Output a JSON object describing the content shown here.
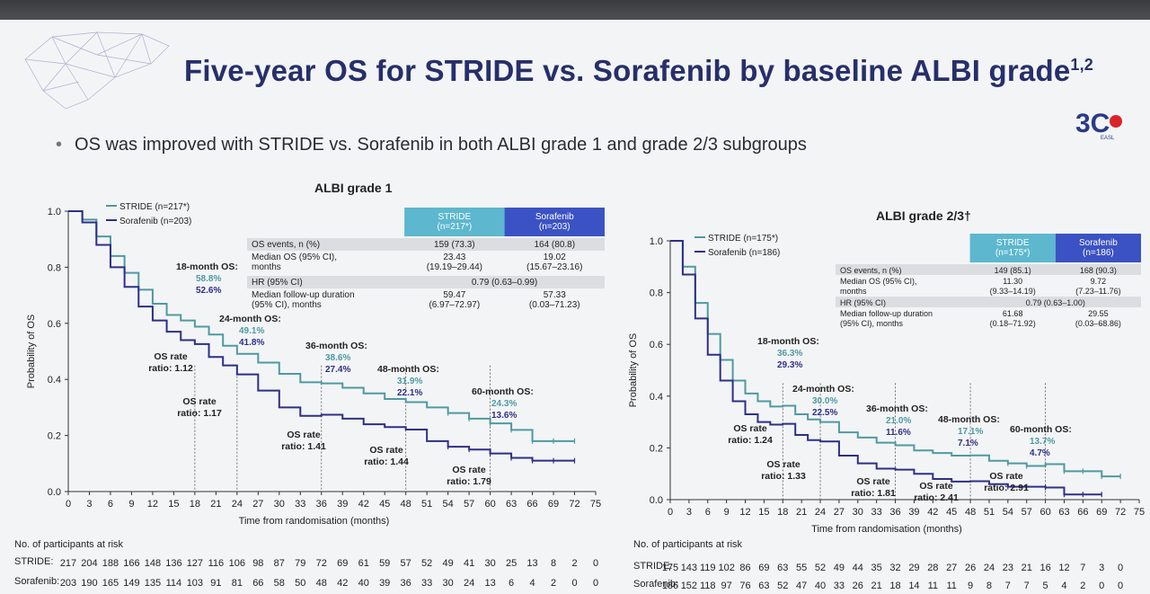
{
  "slide": {
    "title": "Five-year OS for STRIDE vs. Sorafenib by baseline ALBI grade",
    "title_sup": "1,2",
    "bullet": "OS was improved with STRIDE vs. Sorafenib in both ALBI grade 1 and grade 2/3 subgroups",
    "logo_text": "3C",
    "logo_sub": "EASL"
  },
  "colors": {
    "stride": "#4e9aa0",
    "sorafenib": "#2e2f86",
    "header_stride": "#5db7cf",
    "header_soraf": "#3b52c4"
  },
  "chart_data": [
    {
      "type": "line",
      "title": "ALBI grade 1",
      "xlabel": "Time from randomisation (months)",
      "ylabel": "Probability of OS",
      "xlim": [
        0,
        75
      ],
      "ylim": [
        0,
        1.0
      ],
      "xticks": [
        0,
        3,
        6,
        9,
        12,
        15,
        18,
        21,
        24,
        27,
        30,
        33,
        36,
        39,
        42,
        45,
        48,
        51,
        54,
        57,
        60,
        63,
        66,
        69,
        72,
        75
      ],
      "yticks": [
        "0.0",
        "0.2",
        "0.4",
        "0.6",
        "0.8",
        "1.0"
      ],
      "legend": [
        "STRIDE (n=217*)",
        "Sorafenib (n=203)"
      ],
      "series": [
        {
          "name": "STRIDE (n=217*)",
          "x": [
            0,
            2,
            4,
            6,
            8,
            10,
            12,
            14,
            16,
            18,
            20,
            22,
            24,
            27,
            30,
            33,
            36,
            39,
            42,
            45,
            48,
            51,
            54,
            57,
            60,
            63,
            66,
            69,
            72
          ],
          "values": [
            1.0,
            0.97,
            0.91,
            0.84,
            0.78,
            0.72,
            0.67,
            0.63,
            0.61,
            0.588,
            0.56,
            0.52,
            0.491,
            0.46,
            0.42,
            0.39,
            0.386,
            0.37,
            0.35,
            0.33,
            0.319,
            0.3,
            0.28,
            0.26,
            0.243,
            0.22,
            0.18,
            0.18,
            0.18
          ]
        },
        {
          "name": "Sorafenib (n=203)",
          "x": [
            0,
            2,
            4,
            6,
            8,
            10,
            12,
            14,
            16,
            18,
            20,
            22,
            24,
            27,
            30,
            33,
            36,
            39,
            42,
            45,
            48,
            51,
            54,
            57,
            60,
            63,
            66,
            69,
            72
          ],
          "values": [
            1.0,
            0.96,
            0.88,
            0.8,
            0.73,
            0.66,
            0.61,
            0.57,
            0.54,
            0.526,
            0.48,
            0.45,
            0.418,
            0.36,
            0.3,
            0.27,
            0.274,
            0.26,
            0.24,
            0.23,
            0.221,
            0.18,
            0.16,
            0.15,
            0.136,
            0.12,
            0.11,
            0.11,
            0.11
          ]
        }
      ],
      "annotations": [
        {
          "label": "18-month OS:",
          "stride": "58.8%",
          "soraf": "52.6%"
        },
        {
          "label": "24-month OS:",
          "stride": "49.1%",
          "soraf": "41.8%"
        },
        {
          "label": "36-month OS:",
          "stride": "38.6%",
          "soraf": "27.4%"
        },
        {
          "label": "48-month OS:",
          "stride": "31.9%",
          "soraf": "22.1%"
        },
        {
          "label": "60-month OS:",
          "stride": "24.3%",
          "soraf": "13.6%"
        }
      ],
      "ratios": [
        "OS rate\nratio: 1.12",
        "OS rate\nratio: 1.17",
        "OS rate\nratio: 1.41",
        "OS rate\nratio: 1.44",
        "OS rate\nratio: 1.79"
      ],
      "table": {
        "headers": [
          "STRIDE\n(n=217*)",
          "Sorafenib\n(n=203)"
        ],
        "rows": [
          [
            "OS events, n (%)",
            "159 (73.3)",
            "164 (80.8)"
          ],
          [
            "Median OS (95% CI),\nmonths",
            "23.43\n(19.19–29.44)",
            "19.02\n(15.67–23.16)"
          ],
          [
            "HR (95% CI)",
            "0.79 (0.63–0.99)",
            ""
          ],
          [
            "Median follow-up duration\n(95% CI), months",
            "59.47\n(6.97–72.97)",
            "57.33\n(0.03–71.23)"
          ]
        ]
      }
    },
    {
      "type": "line",
      "title": "ALBI grade 2/3†",
      "xlabel": "Time from randomisation (months)",
      "ylabel": "Probability of OS",
      "xlim": [
        0,
        75
      ],
      "ylim": [
        0,
        1.0
      ],
      "xticks": [
        0,
        3,
        6,
        9,
        12,
        15,
        18,
        21,
        24,
        27,
        30,
        33,
        36,
        39,
        42,
        45,
        48,
        51,
        54,
        57,
        60,
        63,
        66,
        69,
        72,
        75
      ],
      "yticks": [
        "0.0",
        "0.2",
        "0.4",
        "0.6",
        "0.8",
        "1.0"
      ],
      "legend": [
        "STRIDE (n=175*)",
        "Sorafenib (n=186)"
      ],
      "series": [
        {
          "name": "STRIDE (n=175*)",
          "x": [
            0,
            2,
            4,
            6,
            8,
            10,
            12,
            14,
            16,
            18,
            20,
            22,
            24,
            27,
            30,
            33,
            36,
            39,
            42,
            45,
            48,
            51,
            54,
            57,
            60,
            63,
            66,
            69,
            72
          ],
          "values": [
            1.0,
            0.9,
            0.76,
            0.64,
            0.54,
            0.46,
            0.41,
            0.38,
            0.36,
            0.363,
            0.33,
            0.31,
            0.3,
            0.26,
            0.24,
            0.22,
            0.21,
            0.19,
            0.18,
            0.17,
            0.171,
            0.15,
            0.14,
            0.13,
            0.137,
            0.11,
            0.11,
            0.09,
            0.09
          ]
        },
        {
          "name": "Sorafenib (n=186)",
          "x": [
            0,
            2,
            4,
            6,
            8,
            10,
            12,
            14,
            16,
            18,
            20,
            22,
            24,
            27,
            30,
            33,
            36,
            39,
            42,
            45,
            48,
            51,
            54,
            57,
            60,
            63,
            66,
            69
          ],
          "values": [
            1.0,
            0.87,
            0.7,
            0.56,
            0.46,
            0.38,
            0.33,
            0.3,
            0.29,
            0.293,
            0.25,
            0.23,
            0.225,
            0.17,
            0.14,
            0.12,
            0.116,
            0.1,
            0.08,
            0.07,
            0.071,
            0.06,
            0.05,
            0.05,
            0.047,
            0.02,
            0.02,
            0.02
          ]
        }
      ],
      "annotations": [
        {
          "label": "18-month OS:",
          "stride": "36.3%",
          "soraf": "29.3%"
        },
        {
          "label": "24-month OS:",
          "stride": "30.0%",
          "soraf": "22.5%"
        },
        {
          "label": "36-month OS:",
          "stride": "21.0%",
          "soraf": "11.6%"
        },
        {
          "label": "48-month OS:",
          "stride": "17.1%",
          "soraf": "7.1%"
        },
        {
          "label": "60-month OS:",
          "stride": "13.7%",
          "soraf": "4.7%"
        }
      ],
      "ratios": [
        "OS rate\nratio: 1.24",
        "OS rate\nratio: 1.33",
        "OS rate\nratio: 1.81",
        "OS rate\nratio: 2.41",
        "OS rate\nratio: 2.91"
      ],
      "table": {
        "headers": [
          "STRIDE\n(n=175*)",
          "Sorafenib\n(n=186)"
        ],
        "rows": [
          [
            "OS events, n (%)",
            "149 (85.1)",
            "168 (90.3)"
          ],
          [
            "Median OS (95% CI),\nmonths",
            "11.30\n(9.33–14.19)",
            "9.72\n(7.23–11.76)"
          ],
          [
            "HR (95% CI)",
            "0.79 (0.63–1.00)",
            ""
          ],
          [
            "Median follow-up duration\n(95% CI), months",
            "61.68\n(0.18–71.92)",
            "29.55\n(0.03–68.86)"
          ]
        ]
      }
    }
  ],
  "risk": {
    "title": "No. of participants at risk",
    "left": {
      "stride_label": "STRIDE:",
      "soraf_label": "Sorafenib:",
      "stride": [
        "217",
        "204",
        "188",
        "166",
        "148",
        "136",
        "127",
        "116",
        "106",
        "98",
        "87",
        "79",
        "72",
        "69",
        "61",
        "59",
        "57",
        "52",
        "49",
        "41",
        "30",
        "25",
        "13",
        "8",
        "2",
        "0"
      ],
      "soraf": [
        "203",
        "190",
        "165",
        "149",
        "135",
        "114",
        "103",
        "91",
        "81",
        "66",
        "58",
        "50",
        "48",
        "42",
        "40",
        "39",
        "36",
        "33",
        "30",
        "24",
        "13",
        "6",
        "4",
        "2",
        "0",
        "0"
      ]
    },
    "right": {
      "stride_label": "STRIDE:",
      "soraf_label": "Sorafenib:",
      "stride": [
        "175",
        "143",
        "119",
        "102",
        "86",
        "69",
        "63",
        "55",
        "52",
        "49",
        "44",
        "35",
        "32",
        "29",
        "28",
        "27",
        "26",
        "24",
        "23",
        "21",
        "16",
        "12",
        "7",
        "3",
        "0"
      ],
      "soraf": [
        "186",
        "152",
        "118",
        "97",
        "76",
        "63",
        "52",
        "47",
        "40",
        "33",
        "26",
        "21",
        "18",
        "14",
        "11",
        "11",
        "9",
        "8",
        "7",
        "7",
        "5",
        "4",
        "2",
        "0",
        "0"
      ]
    }
  }
}
